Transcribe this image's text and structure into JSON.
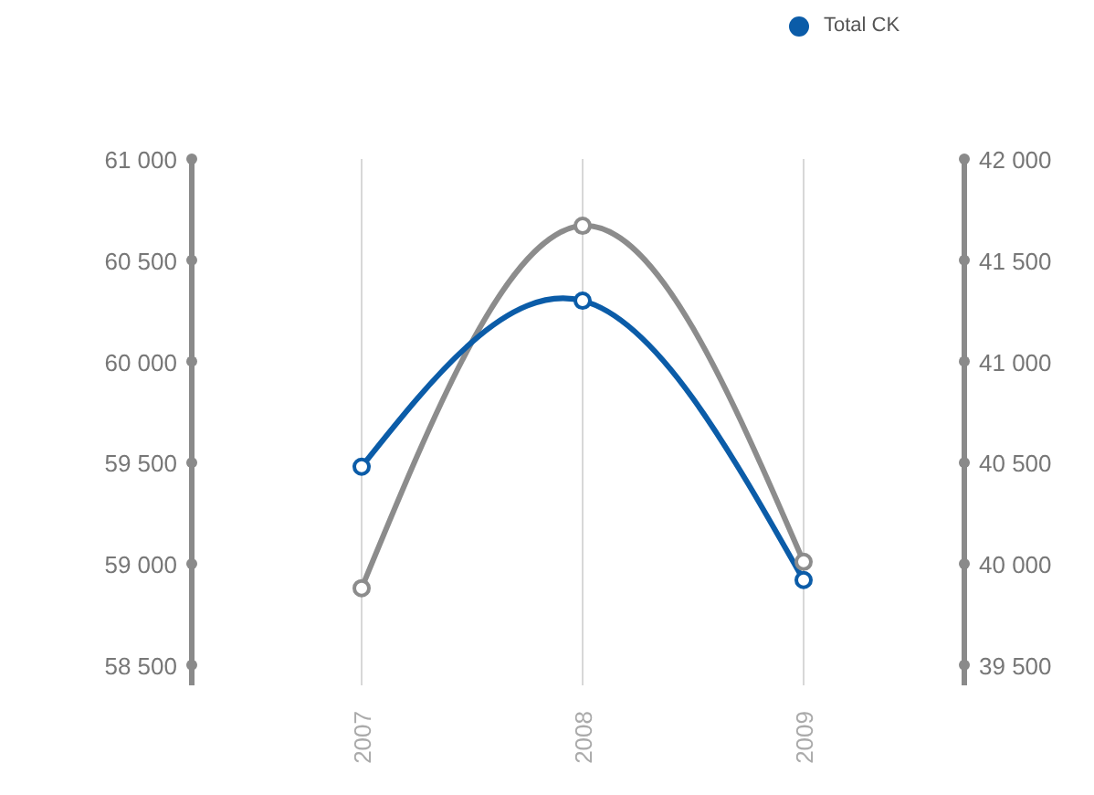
{
  "chart_data": {
    "type": "line",
    "categories": [
      "2007",
      "2008",
      "2009"
    ],
    "series": [
      {
        "color": "#8c8c8c",
        "values": [
          58880,
          60670,
          59010
        ]
      },
      {
        "name": "Total CK",
        "color": "#0b5ca8",
        "values": [
          40480,
          41300,
          39920
        ],
        "axis": "y2"
      }
    ],
    "ylim": [
      58400,
      61000
    ],
    "yticks": [
      {
        "value": 58500,
        "label": "58 500"
      },
      {
        "value": 59000,
        "label": "59 000"
      },
      {
        "value": 59500,
        "label": "59 500"
      },
      {
        "value": 60000,
        "label": "60 000"
      },
      {
        "value": 60500,
        "label": "60 500"
      },
      {
        "value": 61000,
        "label": "61 000"
      }
    ],
    "y2lim": [
      39400,
      42000
    ],
    "y2ticks": [
      {
        "value": 39500,
        "label": "39 500"
      },
      {
        "value": 40000,
        "label": "40 000"
      },
      {
        "value": 40500,
        "label": "40 500"
      },
      {
        "value": 41000,
        "label": "41 000"
      },
      {
        "value": 41500,
        "label": "41 500"
      },
      {
        "value": 42000,
        "label": "42 000"
      }
    ],
    "grid": "x",
    "legend": "top right",
    "marker": "circle",
    "line_style": "solid"
  }
}
